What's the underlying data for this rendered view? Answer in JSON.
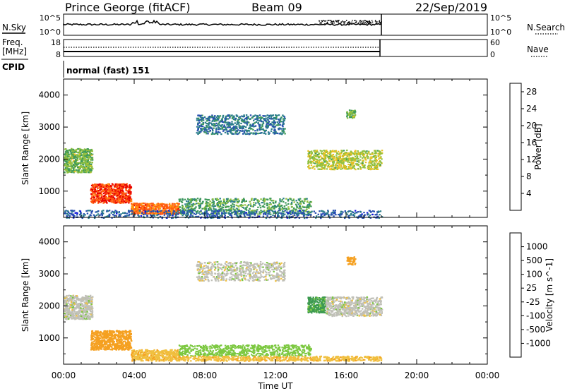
{
  "header": {
    "station": "Prince George (fitACF)",
    "beam": "Beam 09",
    "date": "22/Sep/2019"
  },
  "strips": {
    "nsky": {
      "label": "N.Sky",
      "tick_top": "10^5",
      "tick_bottom": "10^0"
    },
    "nsearch": {
      "label": "N.Search",
      "tick_top": "10^5",
      "tick_bottom": "10^0"
    },
    "freq": {
      "label_line1": "Freq.",
      "label_line2": "[MHz]",
      "tick_top": "18",
      "tick_bottom": "8"
    },
    "nave": {
      "label": "Nave",
      "tick_top": "60",
      "tick_bottom": "0"
    },
    "cpid": {
      "label": "CPID",
      "value": "normal (fast) 151"
    }
  },
  "colors": {
    "power_scale": [
      "#1010e0",
      "#2850b0",
      "#2a7d8a",
      "#3f9a5a",
      "#90c040",
      "#e8c020",
      "#ff9a10",
      "#ff5a10",
      "#e80000"
    ],
    "velocity_scale": [
      "#1e3cc8",
      "#2c6aa0",
      "#3d9a50",
      "#7cc840",
      "#c0c0b8",
      "#f0c040",
      "#f5a020",
      "#f07010",
      "#e02020"
    ],
    "range_gate": "#777777"
  },
  "chart_data": [
    {
      "type": "heatmap",
      "panel": "power",
      "ylabel": "Slant Range [km]",
      "xlabel": "",
      "xlim": [
        0,
        24
      ],
      "ylim": [
        180,
        4500
      ],
      "x_ticks": [
        "00:00",
        "04:00",
        "08:00",
        "12:00",
        "16:00",
        "20:00",
        "00:00"
      ],
      "y_ticks": [
        1000,
        2000,
        3000,
        4000
      ],
      "colorbar": {
        "label": "Power [dB]",
        "ticks": [
          "4",
          "8",
          "12",
          "16",
          "20",
          "24",
          "28"
        ],
        "range": [
          0,
          30
        ]
      },
      "data_coverage_hours": [
        0,
        18
      ],
      "regions": [
        {
          "t0": 0.0,
          "t1": 1.6,
          "r0": 1600,
          "r1": 2350,
          "level": 14
        },
        {
          "t0": 1.5,
          "t1": 3.8,
          "r0": 650,
          "r1": 1250,
          "level": 26
        },
        {
          "t0": 3.8,
          "t1": 6.5,
          "r0": 300,
          "r1": 650,
          "level": 24
        },
        {
          "t0": 6.5,
          "t1": 14.0,
          "r0": 300,
          "r1": 800,
          "level": 12
        },
        {
          "t0": 7.5,
          "t1": 12.5,
          "r0": 2800,
          "r1": 3400,
          "level": 8
        },
        {
          "t0": 13.8,
          "t1": 18.0,
          "r0": 1700,
          "r1": 2300,
          "level": 16
        },
        {
          "t0": 16.0,
          "t1": 16.5,
          "r0": 3300,
          "r1": 3550,
          "level": 14
        },
        {
          "t0": 0.0,
          "t1": 18.0,
          "r0": 180,
          "r1": 420,
          "level": 6
        }
      ]
    },
    {
      "type": "heatmap",
      "panel": "velocity",
      "ylabel": "Slant Range [km]",
      "xlabel": "Time UT",
      "xlim": [
        0,
        24
      ],
      "ylim": [
        180,
        4500
      ],
      "x_ticks": [
        "00:00",
        "04:00",
        "08:00",
        "12:00",
        "16:00",
        "20:00",
        "00:00"
      ],
      "y_ticks": [
        1000,
        2000,
        3000,
        4000
      ],
      "colorbar": {
        "label": "Velocity [m s^-1]",
        "ticks": [
          "1000",
          "500",
          "100",
          "25",
          "-25",
          "-100",
          "-500",
          "-1000"
        ],
        "range": [
          -1000,
          1000
        ]
      },
      "data_coverage_hours": [
        0,
        18
      ],
      "regions": [
        {
          "t0": 0.0,
          "t1": 1.6,
          "r0": 1600,
          "r1": 2350,
          "level": 0
        },
        {
          "t0": 1.5,
          "t1": 3.8,
          "r0": 650,
          "r1": 1250,
          "level": -300
        },
        {
          "t0": 3.8,
          "t1": 6.5,
          "r0": 300,
          "r1": 650,
          "level": -80
        },
        {
          "t0": 6.5,
          "t1": 14.0,
          "r0": 450,
          "r1": 800,
          "level": 60
        },
        {
          "t0": 6.5,
          "t1": 18.0,
          "r0": 300,
          "r1": 450,
          "level": -80
        },
        {
          "t0": 7.5,
          "t1": 12.5,
          "r0": 2800,
          "r1": 3400,
          "level": 0
        },
        {
          "t0": 13.8,
          "t1": 14.8,
          "r0": 1800,
          "r1": 2300,
          "level": 120
        },
        {
          "t0": 14.8,
          "t1": 18.0,
          "r0": 1700,
          "r1": 2300,
          "level": 0
        },
        {
          "t0": 16.0,
          "t1": 16.5,
          "r0": 3300,
          "r1": 3550,
          "level": -300
        }
      ]
    }
  ]
}
